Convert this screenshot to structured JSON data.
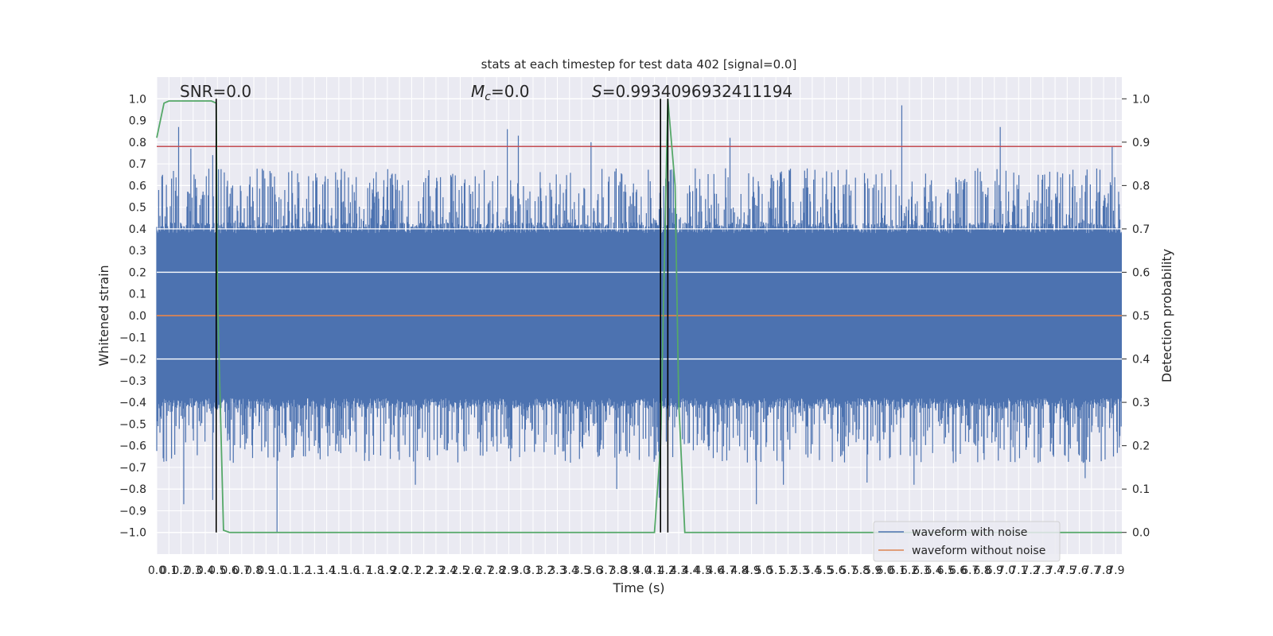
{
  "chart_data": {
    "type": "line",
    "title": "stats at each timestep for test data 402 [signal=0.0]",
    "xlabel": "Time (s)",
    "ylabel": "Whitened strain",
    "y2label": "Detection probability",
    "grid": true,
    "legend_position": "lower-right",
    "xlim": [
      0.0,
      7.95
    ],
    "ylim": [
      -1.1,
      1.1
    ],
    "y2lim": [
      -0.05,
      1.05
    ],
    "xticks": [
      "0.0",
      "0.1",
      "0.2",
      "0.3",
      "0.4",
      "0.5",
      "0.6",
      "0.7",
      "0.8",
      "0.9",
      "1.0",
      "1.1",
      "1.2",
      "1.3",
      "1.4",
      "1.5",
      "1.6",
      "1.7",
      "1.8",
      "1.9",
      "2.0",
      "2.1",
      "2.2",
      "2.3",
      "2.4",
      "2.5",
      "2.6",
      "2.7",
      "2.8",
      "2.9",
      "3.0",
      "3.1",
      "3.2",
      "3.3",
      "3.4",
      "3.5",
      "3.6",
      "3.7",
      "3.8",
      "3.9",
      "4.0",
      "4.1",
      "4.2",
      "4.3",
      "4.4",
      "4.5",
      "4.6",
      "4.7",
      "4.8",
      "4.9",
      "5.0",
      "5.1",
      "5.2",
      "5.3",
      "5.4",
      "5.5",
      "5.6",
      "5.7",
      "5.8",
      "5.9",
      "6.0",
      "6.1",
      "6.2",
      "6.3",
      "6.4",
      "6.5",
      "6.6",
      "6.7",
      "6.8",
      "6.9",
      "7.0",
      "7.1",
      "7.2",
      "7.3",
      "7.4",
      "7.5",
      "7.6",
      "7.7",
      "7.8",
      "7.9"
    ],
    "yticks": [
      "1.0",
      "0.9",
      "0.8",
      "0.7",
      "0.6",
      "0.5",
      "0.4",
      "0.3",
      "0.2",
      "0.1",
      "0.0",
      "−0.1",
      "−0.2",
      "−0.3",
      "−0.4",
      "−0.5",
      "−0.6",
      "−0.7",
      "−0.8",
      "−0.9",
      "−1.0"
    ],
    "y2ticks": [
      "1.0",
      "0.9",
      "0.8",
      "0.7",
      "0.6",
      "0.5",
      "0.4",
      "0.3",
      "0.2",
      "0.1",
      "0.0"
    ],
    "annotations": {
      "snr": "SNR=0.0",
      "mc": "M",
      "mc_sub": "c",
      "mc_value": "=0.0",
      "s_var": "S",
      "s_value": "=0.9934096932411194"
    },
    "threshold": {
      "y": 0.78,
      "color": "#c44e52"
    },
    "vertical_lines_x": [
      0.49,
      4.15,
      4.21
    ],
    "noise_envelope": {
      "color": "#4c72b0",
      "samples": 1500,
      "core_amplitude": 0.38,
      "peaks_pos": [
        [
          0.18,
          0.87
        ],
        [
          0.28,
          0.77
        ],
        [
          0.46,
          0.74
        ],
        [
          2.89,
          0.86
        ],
        [
          2.98,
          0.83
        ],
        [
          3.58,
          0.8
        ],
        [
          4.21,
          0.97
        ],
        [
          4.72,
          0.82
        ],
        [
          6.14,
          0.97
        ],
        [
          6.95,
          0.87
        ],
        [
          7.87,
          0.78
        ]
      ],
      "peaks_neg": [
        [
          0.22,
          -0.87
        ],
        [
          0.46,
          -0.85
        ],
        [
          0.99,
          -1.0
        ],
        [
          2.13,
          -0.78
        ],
        [
          3.79,
          -0.8
        ],
        [
          4.14,
          -0.84
        ],
        [
          4.94,
          -0.87
        ],
        [
          5.16,
          -0.78
        ],
        [
          5.85,
          -0.77
        ],
        [
          6.24,
          -0.78
        ],
        [
          7.65,
          -0.75
        ]
      ]
    },
    "series": [
      {
        "name": "waveform with noise",
        "color": "#4c72b0",
        "axis": "left"
      },
      {
        "name": "waveform without noise",
        "color": "#dd8452",
        "axis": "left",
        "x": [
          0.0,
          7.95
        ],
        "y": [
          0.0,
          0.0
        ]
      },
      {
        "color": "#55a868",
        "axis": "right",
        "x": [
          0.0,
          0.06,
          0.1,
          0.15,
          0.2,
          0.25,
          0.3,
          0.35,
          0.4,
          0.45,
          0.49,
          0.5,
          0.55,
          0.6,
          4.1,
          4.15,
          4.21,
          4.27,
          4.3,
          4.35,
          7.95
        ],
        "y": [
          0.91,
          0.99,
          0.995,
          0.995,
          0.995,
          0.995,
          0.995,
          0.995,
          0.995,
          0.995,
          0.99,
          0.55,
          0.005,
          0.0,
          0.0,
          0.2,
          1.0,
          0.8,
          0.3,
          0.0,
          0.0
        ]
      }
    ]
  }
}
